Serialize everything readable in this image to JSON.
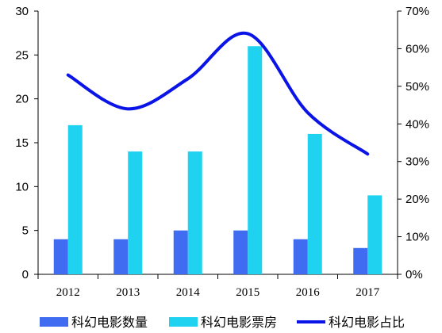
{
  "chart_data": {
    "type": "bar",
    "categories": [
      "2012",
      "2013",
      "2014",
      "2015",
      "2016",
      "2017"
    ],
    "series": [
      {
        "name": "科幻电影数量",
        "type": "bar",
        "axis": "left",
        "color": "#3F6CF0",
        "values": [
          4,
          4,
          5,
          5,
          4,
          3
        ]
      },
      {
        "name": "科幻电影票房",
        "type": "bar",
        "axis": "left",
        "color": "#1FD2F0",
        "values": [
          17,
          14,
          14,
          26,
          16,
          9
        ]
      },
      {
        "name": "科幻电影占比",
        "type": "line",
        "axis": "right",
        "color": "#0A14E6",
        "values": [
          0.53,
          0.44,
          0.52,
          0.64,
          0.43,
          0.32
        ]
      }
    ],
    "y_left": {
      "min": 0,
      "max": 30,
      "ticks": [
        0,
        5,
        10,
        15,
        20,
        25,
        30
      ]
    },
    "y_right": {
      "min": 0,
      "max": 0.7,
      "ticks": [
        "0%",
        "10%",
        "20%",
        "30%",
        "40%",
        "50%",
        "60%",
        "70%"
      ]
    },
    "grid": false,
    "legend_position": "bottom"
  }
}
